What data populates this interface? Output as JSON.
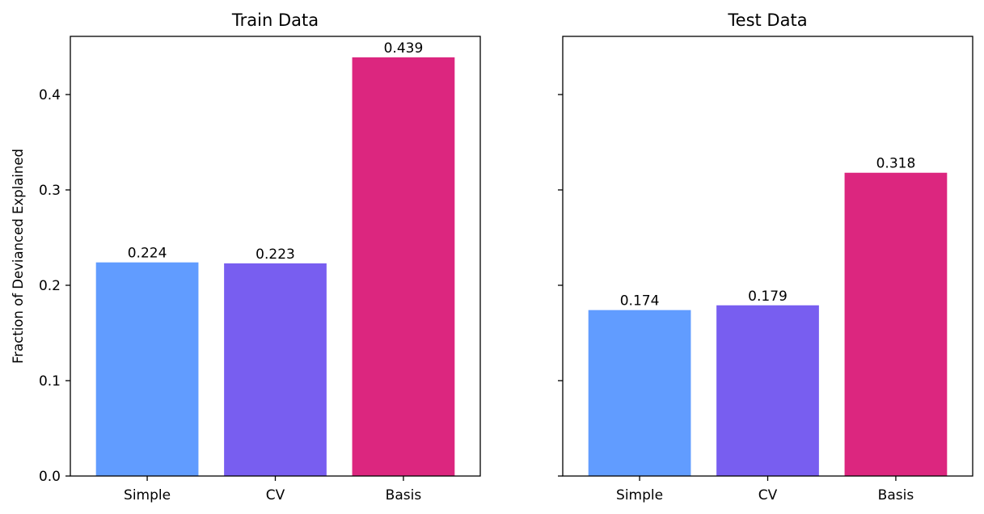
{
  "chart_data": [
    {
      "type": "bar",
      "title": "Train Data",
      "ylabel": "Fraction of Devianced Explained",
      "categories": [
        "Simple",
        "CV",
        "Basis"
      ],
      "values": [
        0.224,
        0.223,
        0.439
      ],
      "value_labels": [
        "0.224",
        "0.223",
        "0.439"
      ],
      "colors": [
        "#619cff",
        "#785ef0",
        "#dc267f"
      ],
      "ylim": [
        0,
        0.461
      ],
      "yticks": [
        0.0,
        0.1,
        0.2,
        0.3,
        0.4
      ],
      "ytick_labels": [
        "0.0",
        "0.1",
        "0.2",
        "0.3",
        "0.4"
      ],
      "grid": false
    },
    {
      "type": "bar",
      "title": "Test Data",
      "categories": [
        "Simple",
        "CV",
        "Basis"
      ],
      "values": [
        0.174,
        0.179,
        0.318
      ],
      "value_labels": [
        "0.174",
        "0.179",
        "0.318"
      ],
      "colors": [
        "#619cff",
        "#785ef0",
        "#dc267f"
      ],
      "ylim": [
        0,
        0.461
      ],
      "yticks": [
        0.0,
        0.1,
        0.2,
        0.3,
        0.4
      ],
      "ytick_labels": [],
      "grid": false,
      "sharey": true
    }
  ]
}
